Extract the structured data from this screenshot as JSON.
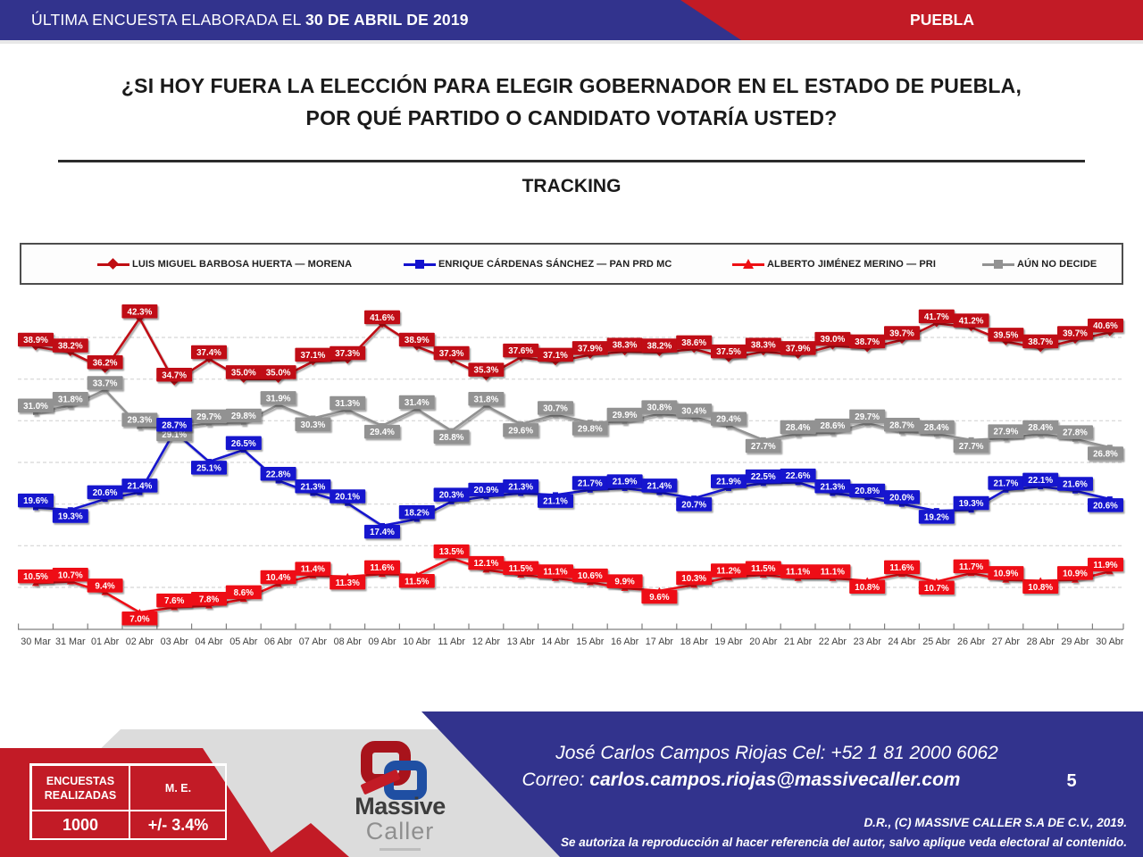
{
  "header": {
    "left_regular": "ÚLTIMA ENCUESTA ELABORADA EL ",
    "left_bold": "30 DE ABRIL DE 2019",
    "right": "PUEBLA"
  },
  "title": {
    "line1": "¿SI HOY FUERA LA ELECCIÓN PARA ELEGIR GOBERNADOR EN EL ESTADO DE PUEBLA,",
    "line2": "POR QUÉ PARTIDO O CANDIDATO VOTARÍA USTED?",
    "section": "TRACKING"
  },
  "chart_data": {
    "type": "line",
    "x": [
      "30 Mar",
      "31 Mar",
      "01 Abr",
      "02 Abr",
      "03 Abr",
      "04 Abr",
      "05 Abr",
      "06 Abr",
      "07 Abr",
      "08 Abr",
      "09 Abr",
      "10 Abr",
      "11 Abr",
      "12 Abr",
      "13 Abr",
      "14 Abr",
      "15 Abr",
      "16 Abr",
      "17 Abr",
      "18 Abr",
      "19 Abr",
      "20 Abr",
      "21 Abr",
      "22 Abr",
      "23 Abr",
      "24 Abr",
      "25 Abr",
      "26 Abr",
      "27 Abr",
      "28 Abr",
      "29 Abr",
      "30 Abr"
    ],
    "series": [
      {
        "name": "LUIS MIGUEL BARBOSA HUERTA — MORENA",
        "color": "#C00D12",
        "marker": "diamond",
        "values": [
          38.9,
          38.2,
          36.2,
          42.3,
          34.7,
          37.4,
          35.0,
          35.0,
          37.1,
          37.3,
          41.6,
          38.9,
          37.3,
          35.3,
          37.6,
          37.1,
          37.9,
          38.3,
          38.2,
          38.6,
          37.5,
          38.3,
          37.9,
          39.0,
          38.7,
          39.7,
          41.7,
          41.2,
          39.5,
          38.7,
          39.7,
          40.6
        ]
      },
      {
        "name": "ENRIQUE CÁRDENAS SÁNCHEZ — PAN PRD MC",
        "color": "#1312CE",
        "marker": "square",
        "values": [
          19.6,
          19.3,
          20.6,
          21.4,
          28.7,
          25.1,
          26.5,
          22.8,
          21.3,
          20.1,
          17.4,
          18.2,
          20.3,
          20.9,
          21.3,
          21.1,
          21.7,
          21.9,
          21.4,
          20.7,
          21.9,
          22.5,
          22.6,
          21.3,
          20.8,
          20.0,
          19.2,
          19.3,
          21.7,
          22.1,
          21.6,
          20.6
        ]
      },
      {
        "name": "ALBERTO JIMÉNEZ MERINO — PRI",
        "color": "#EE1014",
        "marker": "triangle",
        "values": [
          10.5,
          10.7,
          9.4,
          7.0,
          7.6,
          7.8,
          8.6,
          10.4,
          11.4,
          11.3,
          11.6,
          11.5,
          13.5,
          12.1,
          11.5,
          11.1,
          10.6,
          9.9,
          9.6,
          10.3,
          11.2,
          11.5,
          11.1,
          11.1,
          10.8,
          11.6,
          10.7,
          11.7,
          10.9,
          10.8,
          10.9,
          11.9
        ]
      },
      {
        "name": "AÚN NO DECIDE",
        "color": "#929292",
        "marker": "square",
        "values": [
          31.0,
          31.8,
          33.7,
          29.3,
          29.1,
          29.7,
          29.8,
          31.9,
          30.3,
          31.3,
          29.4,
          31.4,
          28.8,
          31.8,
          29.6,
          30.7,
          29.8,
          29.9,
          30.8,
          30.4,
          29.4,
          27.7,
          28.4,
          28.6,
          29.7,
          28.7,
          28.4,
          27.7,
          27.9,
          28.4,
          27.8,
          26.8
        ]
      }
    ],
    "ylim": [
      5,
      45
    ],
    "gridlines_percent": [
      10,
      15,
      20,
      25,
      30,
      35,
      40
    ],
    "grid": "horizontal-dashed",
    "legend_position": "top",
    "label_format": "one-decimal-percent"
  },
  "stats_table": {
    "header_col1": "ENCUESTAS REALIZADAS",
    "header_col2": "M. E.",
    "value_col1": "1000",
    "value_col2": "+/- 3.4%"
  },
  "logo": {
    "line1": "Massive",
    "line2": "Caller"
  },
  "footer": {
    "contact_line": "José Carlos Campos Riojas Cel: +52 1 81 2000 6062",
    "email_label": "Correo: ",
    "email": "carlos.campos.riojas@massivecaller.com",
    "page_number": "5",
    "copyright": "D.R., (C) MASSIVE CALLER S.A DE C.V., 2019.",
    "disclaimer": "Se autoriza la reproducción al hacer referencia del autor, salvo aplique veda electoral al contenido."
  },
  "colors": {
    "brand_blue": "#32338D",
    "brand_red": "#C21B26",
    "morena_red": "#C00D12",
    "pan_blue": "#1312CE",
    "pri_red": "#EE1014",
    "undecided_gray": "#929292",
    "gridline": "#D5D5D5"
  }
}
